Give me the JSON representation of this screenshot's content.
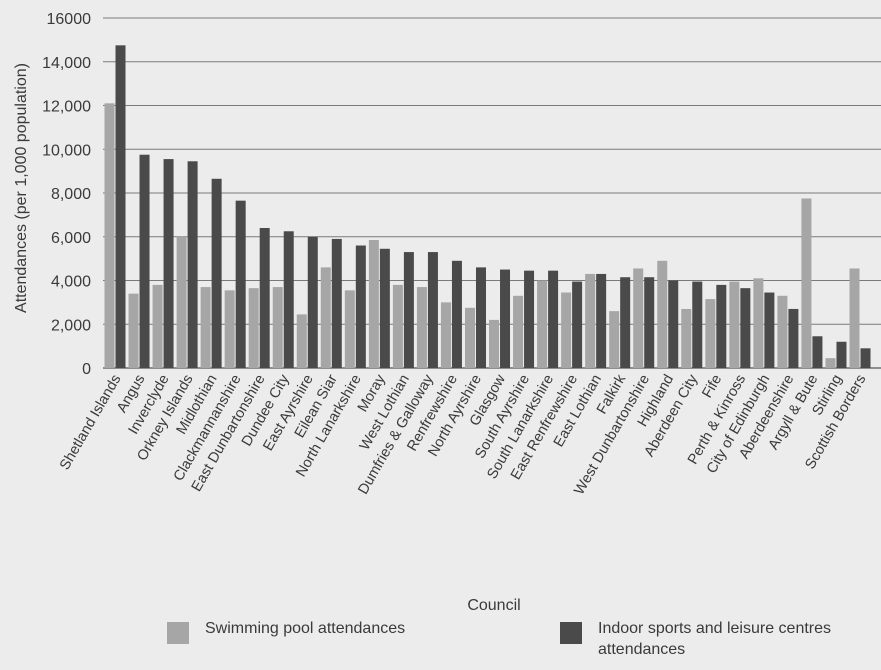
{
  "chart_data": {
    "type": "bar",
    "xlabel": "Council",
    "ylabel": "Attendances (per 1,000 population)",
    "ylim": [
      0,
      16000
    ],
    "yticks": [
      {
        "value": 0,
        "label": "0"
      },
      {
        "value": 2000,
        "label": "2,000"
      },
      {
        "value": 4000,
        "label": "4,000"
      },
      {
        "value": 6000,
        "label": "6,000"
      },
      {
        "value": 8000,
        "label": "8,000"
      },
      {
        "value": 10000,
        "label": "10,000"
      },
      {
        "value": 12000,
        "label": "12,000"
      },
      {
        "value": 14000,
        "label": "14,000"
      },
      {
        "value": 16000,
        "label": "16000"
      }
    ],
    "grid": true,
    "legend_position": "bottom",
    "categories": [
      "Shetland Islands",
      "Angus",
      "Inverclyde",
      "Orkney Islands",
      "Midlothian",
      "Clackmannanshire",
      "East Dunbartonshire",
      "Dundee City",
      "East Ayrshire",
      "Eilean Siar",
      "North Lanarkshire",
      "Moray",
      "West Lothian",
      "Dumfries & Galloway",
      "Renfrewshire",
      "North Ayrshire",
      "Glasgow",
      "South Ayrshire",
      "South Lanarkshire",
      "East Renfrewshire",
      "East Lothian",
      "Falkirk",
      "West Dunbartonshire",
      "Highland",
      "Aberdeen City",
      "Fife",
      "Perth & Kinross",
      "City of Edinburgh",
      "Aberdeenshire",
      "Argyll & Bute",
      "Stirling",
      "Scottish Borders"
    ],
    "series": [
      {
        "name": "Swimming pool attendances",
        "color": "#a6a6a6",
        "values": [
          12100,
          3400,
          3800,
          6000,
          3700,
          3550,
          3650,
          3700,
          2450,
          4600,
          3550,
          5850,
          3800,
          3700,
          3000,
          2750,
          2200,
          3300,
          4000,
          3450,
          4300,
          2600,
          4550,
          4900,
          2700,
          3150,
          3950,
          4100,
          3300,
          7750,
          450,
          4550
        ]
      },
      {
        "name": "Indoor sports and leisure centres attendances",
        "color": "#4a4a4a",
        "values": [
          14750,
          9750,
          9550,
          9450,
          8650,
          7650,
          6400,
          6250,
          6000,
          5900,
          5600,
          5450,
          5300,
          5300,
          4900,
          4600,
          4500,
          4450,
          4450,
          3950,
          4300,
          4150,
          4150,
          4000,
          3950,
          3800,
          3650,
          3450,
          2700,
          1450,
          1200,
          900
        ]
      }
    ]
  }
}
